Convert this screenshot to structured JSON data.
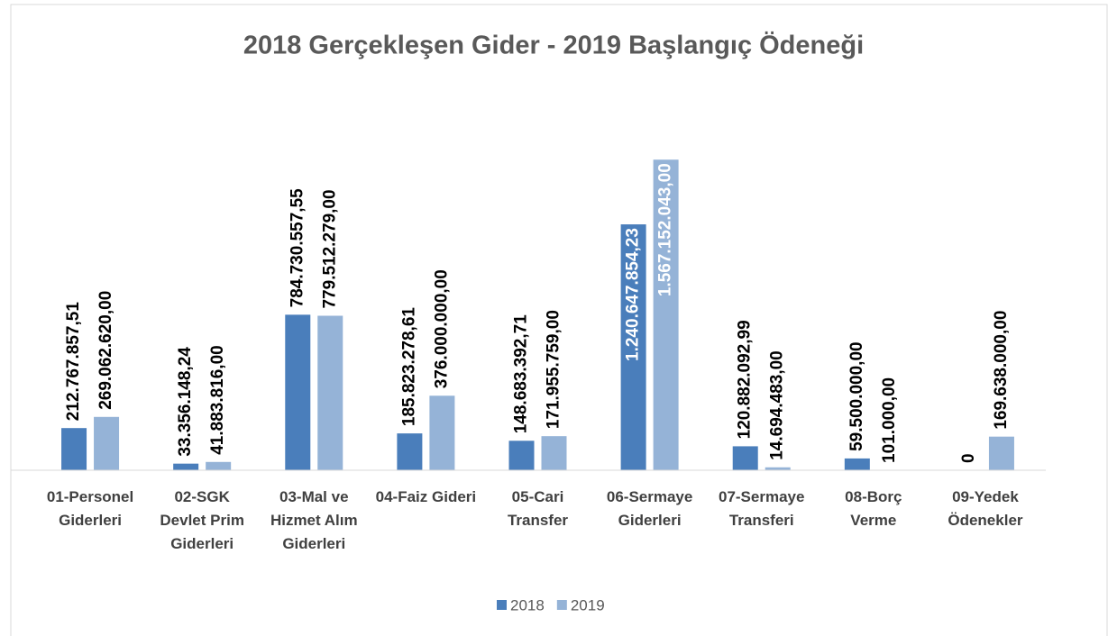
{
  "chart_data": {
    "type": "bar",
    "title": "2018 Gerçekleşen Gider - 2019 Başlangıç Ödeneği",
    "categories": [
      "01-Personel Giderleri",
      "02-SGK Devlet Prim Giderleri",
      "03-Mal ve Hizmet Alım Giderleri",
      "04-Faiz Gideri",
      "05-Cari Transfer",
      "06-Sermaye Giderleri",
      "07-Sermaye Transferi",
      "08-Borç Verme",
      "09-Yedek Ödenekler"
    ],
    "series": [
      {
        "name": "2018",
        "color": "#4a7ebb",
        "values": [
          212767857.51,
          33356148.24,
          784730557.55,
          185823278.61,
          148683392.71,
          1240647854.23,
          120882092.99,
          59500000,
          0
        ],
        "value_labels": [
          "212.767.857,51",
          "33.356.148,24",
          "784.730.557,55",
          "185.823.278,61",
          "148.683.392,71",
          "1.240.647.854,23",
          "120.882.092,99",
          "59.500.000,00",
          "0"
        ]
      },
      {
        "name": "2019",
        "color": "#95b3d7",
        "values": [
          269062620,
          41883816,
          779512279,
          376000000,
          171955759,
          1567152043,
          14694483,
          101000,
          169638000
        ],
        "value_labels": [
          "269.062.620,00",
          "41.883.816,00",
          "779.512.279,00",
          "376.000.000,00",
          "171.955.759,00",
          "1.567.152.043,00",
          "14.694.483,00",
          "101.000,00",
          "169.638.000,00"
        ]
      }
    ],
    "ylim": [
      0,
      1600000000
    ],
    "legend": "bottom"
  }
}
